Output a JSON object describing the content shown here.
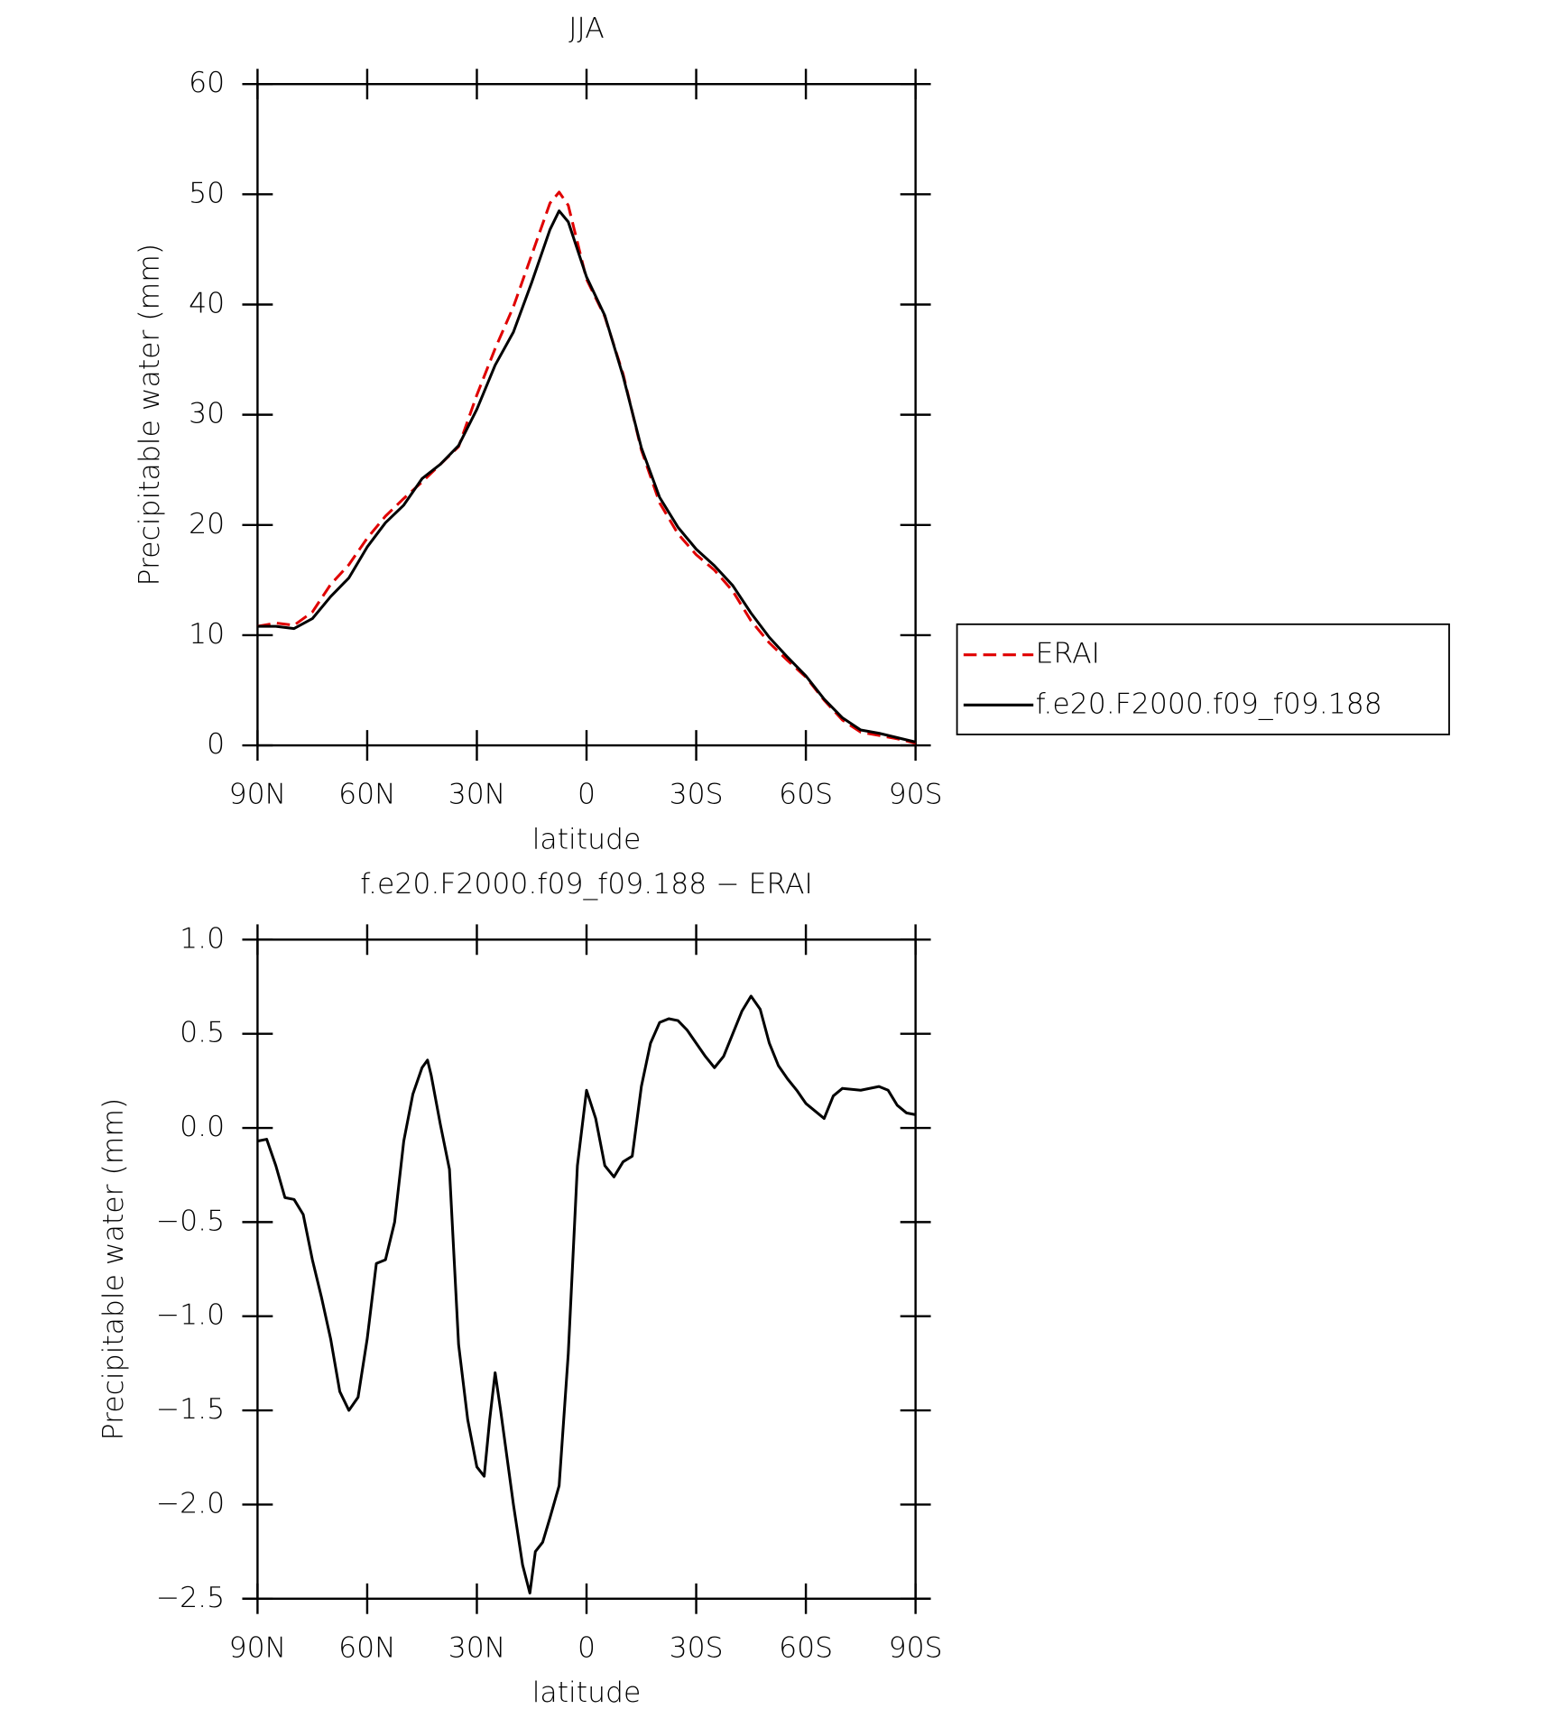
{
  "chart_data": [
    {
      "type": "line",
      "title": "JJA",
      "xlabel": "latitude",
      "ylabel": "Precipitable water (mm)",
      "x": [
        90,
        85,
        80,
        75,
        70,
        65,
        60,
        55,
        50,
        45,
        40,
        35,
        30,
        25,
        20,
        15,
        10,
        7.5,
        5,
        0,
        -5,
        -10,
        -15,
        -20,
        -25,
        -30,
        -35,
        -40,
        -45,
        -50,
        -55,
        -60,
        -65,
        -70,
        -75,
        -80,
        -85,
        -90
      ],
      "series": [
        {
          "name": "ERAI",
          "color": "#e00000",
          "linestyle": "dashed",
          "values": [
            10.8,
            11.1,
            10.9,
            12.1,
            14.6,
            16.4,
            18.8,
            20.8,
            22.4,
            23.9,
            25.5,
            27.1,
            31.8,
            36.0,
            39.8,
            44.5,
            49.2,
            50.2,
            49.0,
            42.3,
            38.9,
            33.7,
            26.8,
            22.0,
            19.2,
            17.3,
            15.9,
            14.0,
            11.3,
            9.3,
            7.7,
            6.2,
            4.1,
            2.3,
            1.2,
            0.9,
            0.6,
            0.2
          ]
        },
        {
          "name": "f.e20.F2000.f09_f09.188",
          "color": "#000000",
          "linestyle": "solid",
          "values": [
            10.8,
            10.8,
            10.6,
            11.5,
            13.5,
            15.2,
            18.0,
            20.2,
            21.8,
            24.2,
            25.5,
            27.2,
            30.5,
            34.5,
            37.5,
            42.0,
            46.8,
            48.5,
            47.5,
            42.5,
            39.0,
            33.5,
            27.0,
            22.5,
            19.8,
            17.8,
            16.3,
            14.5,
            12.0,
            9.8,
            8.0,
            6.3,
            4.2,
            2.5,
            1.4,
            1.1,
            0.7,
            0.3
          ]
        }
      ],
      "xlim": [
        90,
        -90
      ],
      "xticks": [
        {
          "value": 90,
          "label": "90N"
        },
        {
          "value": 60,
          "label": "60N"
        },
        {
          "value": 30,
          "label": "30N"
        },
        0,
        {
          "value": -30,
          "label": "30S"
        },
        {
          "value": -60,
          "label": "60S"
        },
        {
          "value": -90,
          "label": "90S"
        }
      ],
      "ylim": [
        0,
        60
      ],
      "yticks": [
        0,
        10,
        20,
        30,
        40,
        50,
        60
      ],
      "legend": "outside-right"
    },
    {
      "type": "line",
      "title": "f.e20.F2000.f09_f09.188 − ERAI",
      "xlabel": "latitude",
      "ylabel": "Precipitable water (mm)",
      "x": [
        90,
        87.5,
        85,
        82.5,
        80,
        77.5,
        75,
        72.5,
        70,
        67.5,
        65,
        62.5,
        60,
        57.5,
        55,
        52.5,
        50,
        47.5,
        45,
        43.5,
        42.5,
        40,
        37.5,
        35,
        32.5,
        30,
        28,
        26.5,
        25,
        23.5,
        20,
        17.5,
        15.5,
        14,
        12,
        10,
        7.5,
        5,
        2.5,
        0,
        -2.5,
        -5,
        -7.5,
        -10,
        -12.5,
        -15,
        -17.5,
        -20,
        -22.5,
        -25,
        -27.5,
        -30,
        -32.5,
        -35,
        -37.5,
        -40,
        -42.5,
        -45,
        -47.5,
        -50,
        -52.5,
        -55,
        -57.5,
        -60,
        -65,
        -67.5,
        -70,
        -75,
        -80,
        -82.5,
        -85,
        -87.5,
        -90
      ],
      "series": [
        {
          "color": "#000000",
          "linestyle": "solid",
          "values": [
            -0.07,
            -0.06,
            -0.2,
            -0.37,
            -0.38,
            -0.46,
            -0.7,
            -0.9,
            -1.12,
            -1.4,
            -1.5,
            -1.43,
            -1.12,
            -0.72,
            -0.7,
            -0.5,
            -0.07,
            0.18,
            0.32,
            0.36,
            0.28,
            0.02,
            -0.22,
            -1.15,
            -1.55,
            -1.8,
            -1.85,
            -1.55,
            -1.3,
            -1.5,
            -2.0,
            -2.32,
            -2.47,
            -2.25,
            -2.2,
            -2.07,
            -1.9,
            -1.2,
            -0.2,
            0.2,
            0.05,
            -0.2,
            -0.26,
            -0.18,
            -0.15,
            0.22,
            0.45,
            0.56,
            0.58,
            0.57,
            0.52,
            0.45,
            0.38,
            0.32,
            0.38,
            0.5,
            0.62,
            0.7,
            0.63,
            0.45,
            0.33,
            0.26,
            0.2,
            0.13,
            0.05,
            0.17,
            0.21,
            0.2,
            0.22,
            0.2,
            0.12,
            0.08,
            0.07
          ]
        }
      ],
      "xlim": [
        90,
        -90
      ],
      "xticks": [
        {
          "value": 90,
          "label": "90N"
        },
        {
          "value": 60,
          "label": "60N"
        },
        {
          "value": 30,
          "label": "30N"
        },
        0,
        {
          "value": -30,
          "label": "30S"
        },
        {
          "value": -60,
          "label": "60S"
        },
        {
          "value": -90,
          "label": "90S"
        }
      ],
      "ylim": [
        -2.5,
        1.0
      ],
      "yticks": [
        {
          "value": -2.5,
          "label": "−2.5"
        },
        {
          "value": -2.0,
          "label": "−2.0"
        },
        {
          "value": -1.5,
          "label": "−1.5"
        },
        {
          "value": -1.0,
          "label": "−1.0"
        },
        {
          "value": -0.5,
          "label": "−0.5"
        },
        {
          "value": 0,
          "label": "0.0"
        },
        {
          "value": 0.5,
          "label": "0.5"
        },
        {
          "value": 1.0,
          "label": "1.0"
        }
      ]
    }
  ]
}
